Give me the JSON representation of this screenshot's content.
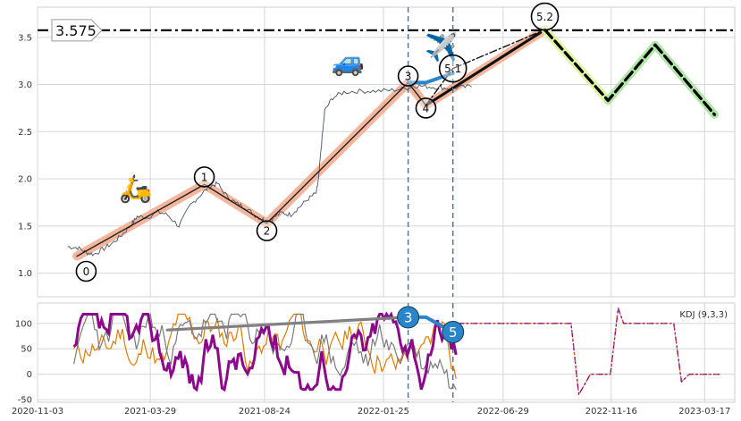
{
  "chart_data": [
    {
      "type": "line",
      "panel": "price",
      "yticks": [
        1.0,
        1.5,
        2.0,
        2.5,
        3.0,
        3.5
      ],
      "ylim": [
        0.75,
        3.82
      ],
      "xlim": [
        "2020-11-03",
        "2023-04-25"
      ],
      "grid": true,
      "series": [
        {
          "key": "price",
          "points": [
            [
              "2020-12-12",
              1.28
            ],
            [
              "2020-12-25",
              1.27
            ],
            [
              "2021-01-05",
              1.22
            ],
            [
              "2021-01-15",
              1.2
            ],
            [
              "2021-01-28",
              1.26
            ],
            [
              "2021-02-10",
              1.33
            ],
            [
              "2021-02-22",
              1.42
            ],
            [
              "2021-03-05",
              1.52
            ],
            [
              "2021-03-12",
              1.6
            ],
            [
              "2021-03-25",
              1.59
            ],
            [
              "2021-04-08",
              1.65
            ],
            [
              "2021-04-20",
              1.62
            ],
            [
              "2021-05-05",
              1.5
            ],
            [
              "2021-05-20",
              1.72
            ],
            [
              "2021-06-02",
              1.83
            ],
            [
              "2021-06-14",
              1.92
            ],
            [
              "2021-06-24",
              1.95
            ],
            [
              "2021-07-06",
              1.82
            ],
            [
              "2021-07-18",
              1.74
            ],
            [
              "2021-07-30",
              1.7
            ],
            [
              "2021-08-10",
              1.62
            ],
            [
              "2021-08-20",
              1.58
            ],
            [
              "2021-08-26",
              1.55
            ],
            [
              "2021-09-03",
              1.58
            ],
            [
              "2021-09-15",
              1.64
            ],
            [
              "2021-09-27",
              1.62
            ],
            [
              "2021-10-08",
              1.7
            ],
            [
              "2021-10-20",
              1.79
            ],
            [
              "2021-10-30",
              1.85
            ],
            [
              "2021-11-02",
              2.0
            ],
            [
              "2021-11-05",
              2.3
            ],
            [
              "2021-11-10",
              2.72
            ],
            [
              "2021-11-20",
              2.86
            ],
            [
              "2021-12-05",
              2.92
            ],
            [
              "2021-12-25",
              2.93
            ],
            [
              "2022-01-15",
              2.93
            ],
            [
              "2022-02-05",
              2.94
            ],
            [
              "2022-02-25",
              2.96
            ],
            [
              "2022-03-05",
              2.99
            ],
            [
              "2022-03-20",
              2.98
            ],
            [
              "2022-04-05",
              2.97
            ],
            [
              "2022-04-18",
              2.96
            ],
            [
              "2022-05-05",
              2.97
            ],
            [
              "2022-05-22",
              2.98
            ]
          ]
        },
        {
          "key": "zigzag",
          "points": [
            [
              "2020-12-24",
              1.18
            ],
            [
              "2021-06-07",
              1.94
            ],
            [
              "2021-08-27",
              1.53
            ],
            [
              "2022-02-26",
              3.02
            ],
            [
              "2022-03-21",
              2.78
            ],
            [
              "2022-08-22",
              3.58
            ]
          ]
        },
        {
          "key": "forecast",
          "points": [
            [
              "2022-08-22",
              3.58
            ],
            [
              "2022-11-12",
              2.83
            ],
            [
              "2023-01-12",
              3.42
            ],
            [
              "2023-03-30",
              2.68
            ]
          ]
        },
        {
          "key": "wave5_extension",
          "points": [
            [
              "2022-03-21",
              2.78
            ],
            [
              "2022-04-25",
              3.17
            ],
            [
              "2022-08-22",
              3.58
            ]
          ]
        },
        {
          "key": "blue_segment",
          "points": [
            [
              "2022-02-26",
              3.02
            ],
            [
              "2022-03-21",
              3.02
            ],
            [
              "2022-04-25",
              3.12
            ]
          ]
        }
      ],
      "reference_lines": {
        "horizontal": 3.575,
        "vertical": [
          "2022-02-26",
          "2022-04-25"
        ]
      },
      "annotations": [
        {
          "label": "0",
          "x": "2021-01-05",
          "y": 1.02
        },
        {
          "label": "1",
          "x": "2021-06-07",
          "y": 2.02
        },
        {
          "label": "2",
          "x": "2021-08-27",
          "y": 1.45
        },
        {
          "label": "3",
          "x": "2022-02-26",
          "y": 3.09
        },
        {
          "label": "4",
          "x": "2022-03-21",
          "y": 2.75
        },
        {
          "label": "5.1",
          "x": "2022-04-25",
          "y": 3.17
        },
        {
          "label": "5.2",
          "x": "2022-08-22",
          "y": 3.72
        }
      ],
      "tag_label": "3.575",
      "icons": [
        {
          "name": "scooter",
          "glyph": "🛵",
          "x": "2021-03-10",
          "y": 1.88
        },
        {
          "name": "car",
          "glyph": "🚙",
          "x": "2021-12-10",
          "y": 3.23
        },
        {
          "name": "airplane",
          "glyph": "✈️",
          "x": "2022-04-10",
          "y": 3.38
        }
      ]
    },
    {
      "type": "line",
      "panel": "kdj",
      "legend": "KDJ (9,3,3)",
      "yticks": [
        -50,
        0,
        50,
        100
      ],
      "ylim": [
        -55,
        140
      ],
      "series": [
        {
          "key": "kdj_flat",
          "points": [
            [
              "2022-05-01",
              100
            ],
            [
              "2022-09-01",
              100
            ],
            [
              "2022-09-25",
              100
            ],
            [
              "2022-10-05",
              -40
            ],
            [
              "2022-10-20",
              0
            ],
            [
              "2022-11-05",
              0
            ],
            [
              "2022-11-15",
              0
            ],
            [
              "2022-11-25",
              130
            ],
            [
              "2022-12-02",
              100
            ],
            [
              "2023-01-15",
              100
            ],
            [
              "2023-02-05",
              100
            ],
            [
              "2023-02-15",
              -15
            ],
            [
              "2023-02-25",
              0
            ],
            [
              "2023-04-05",
              0
            ]
          ]
        },
        {
          "key": "trend_line",
          "points": [
            [
              "2021-04-20",
              87
            ],
            [
              "2022-02-26",
              112
            ]
          ]
        },
        {
          "key": "blue_seg",
          "points": [
            [
              "2022-02-26",
              112
            ],
            [
              "2022-03-21",
              112
            ],
            [
              "2022-04-25",
              83
            ]
          ]
        }
      ],
      "markers": [
        {
          "label": "3",
          "x": "2022-02-26",
          "y": 112
        },
        {
          "label": "5",
          "x": "2022-04-25",
          "y": 83
        }
      ]
    }
  ],
  "xticks": [
    "2020-11-03",
    "2021-03-29",
    "2021-08-24",
    "2022-01-25",
    "2022-06-29",
    "2022-11-16",
    "2023-03-17"
  ],
  "colors": {
    "price": "#4a5468",
    "zigzag_halo": "#f2a98b",
    "zigzag": "#222222",
    "forecast_halo_1": "#dbf59a",
    "forecast_halo_2": "#a9e3a0",
    "blue": "#2a86c8",
    "kdj_main": "#8b0a8b",
    "kdj_k": "#7a7a7a",
    "kdj_d": "#e07b00",
    "grid": "#d6d6d6",
    "vline": "#566f8a"
  }
}
